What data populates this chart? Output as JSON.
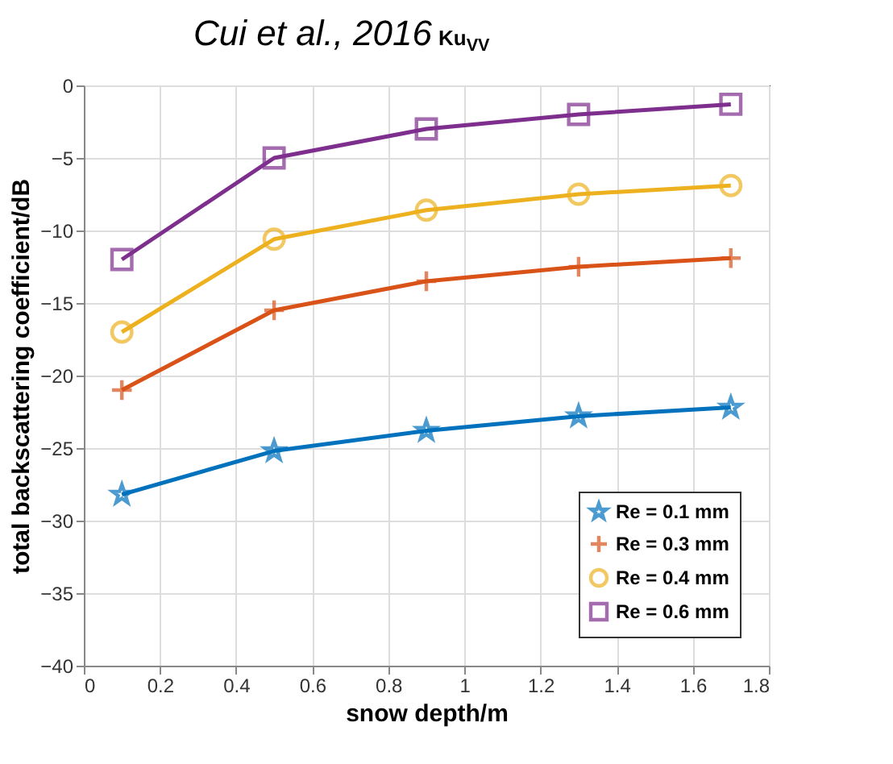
{
  "chart_data": {
    "type": "line",
    "title": "Cui et al., 2016",
    "subtitle": "Ku$_{VV}$",
    "xlabel": "snow depth/m",
    "ylabel": "total backscattering coefficient/dB",
    "x": [
      0.1,
      0.5,
      0.9,
      1.3,
      1.7
    ],
    "series": [
      {
        "name": "Re = 0.1 mm",
        "color": "#0072bd",
        "marker": "star",
        "values": [
          -28.2,
          -25.2,
          -23.8,
          -22.8,
          -22.2
        ]
      },
      {
        "name": "Re = 0.3 mm",
        "color": "#d95319",
        "marker": "cross",
        "values": [
          -21,
          -15.5,
          -13.5,
          -12.5,
          -11.9
        ]
      },
      {
        "name": "Re = 0.4 mm",
        "color": "#edb120",
        "marker": "circle",
        "values": [
          -17,
          -10.6,
          -8.6,
          -7.5,
          -6.9
        ]
      },
      {
        "name": "Re = 0.6 mm",
        "color": "#7e2f8e",
        "marker": "square",
        "values": [
          -12,
          -5,
          -3,
          -2,
          -1.3
        ]
      }
    ],
    "xlim": [
      0,
      1.8
    ],
    "xticks": [
      0,
      0.2,
      0.4,
      0.6,
      0.8,
      1,
      1.2,
      1.4,
      1.6,
      1.8
    ],
    "ylim": [
      -40,
      0
    ],
    "yticks": [
      -40,
      -35,
      -30,
      -25,
      -20,
      -15,
      -10,
      -5,
      0
    ],
    "grid": true,
    "legend": "bottom right",
    "line_style": "solid"
  }
}
